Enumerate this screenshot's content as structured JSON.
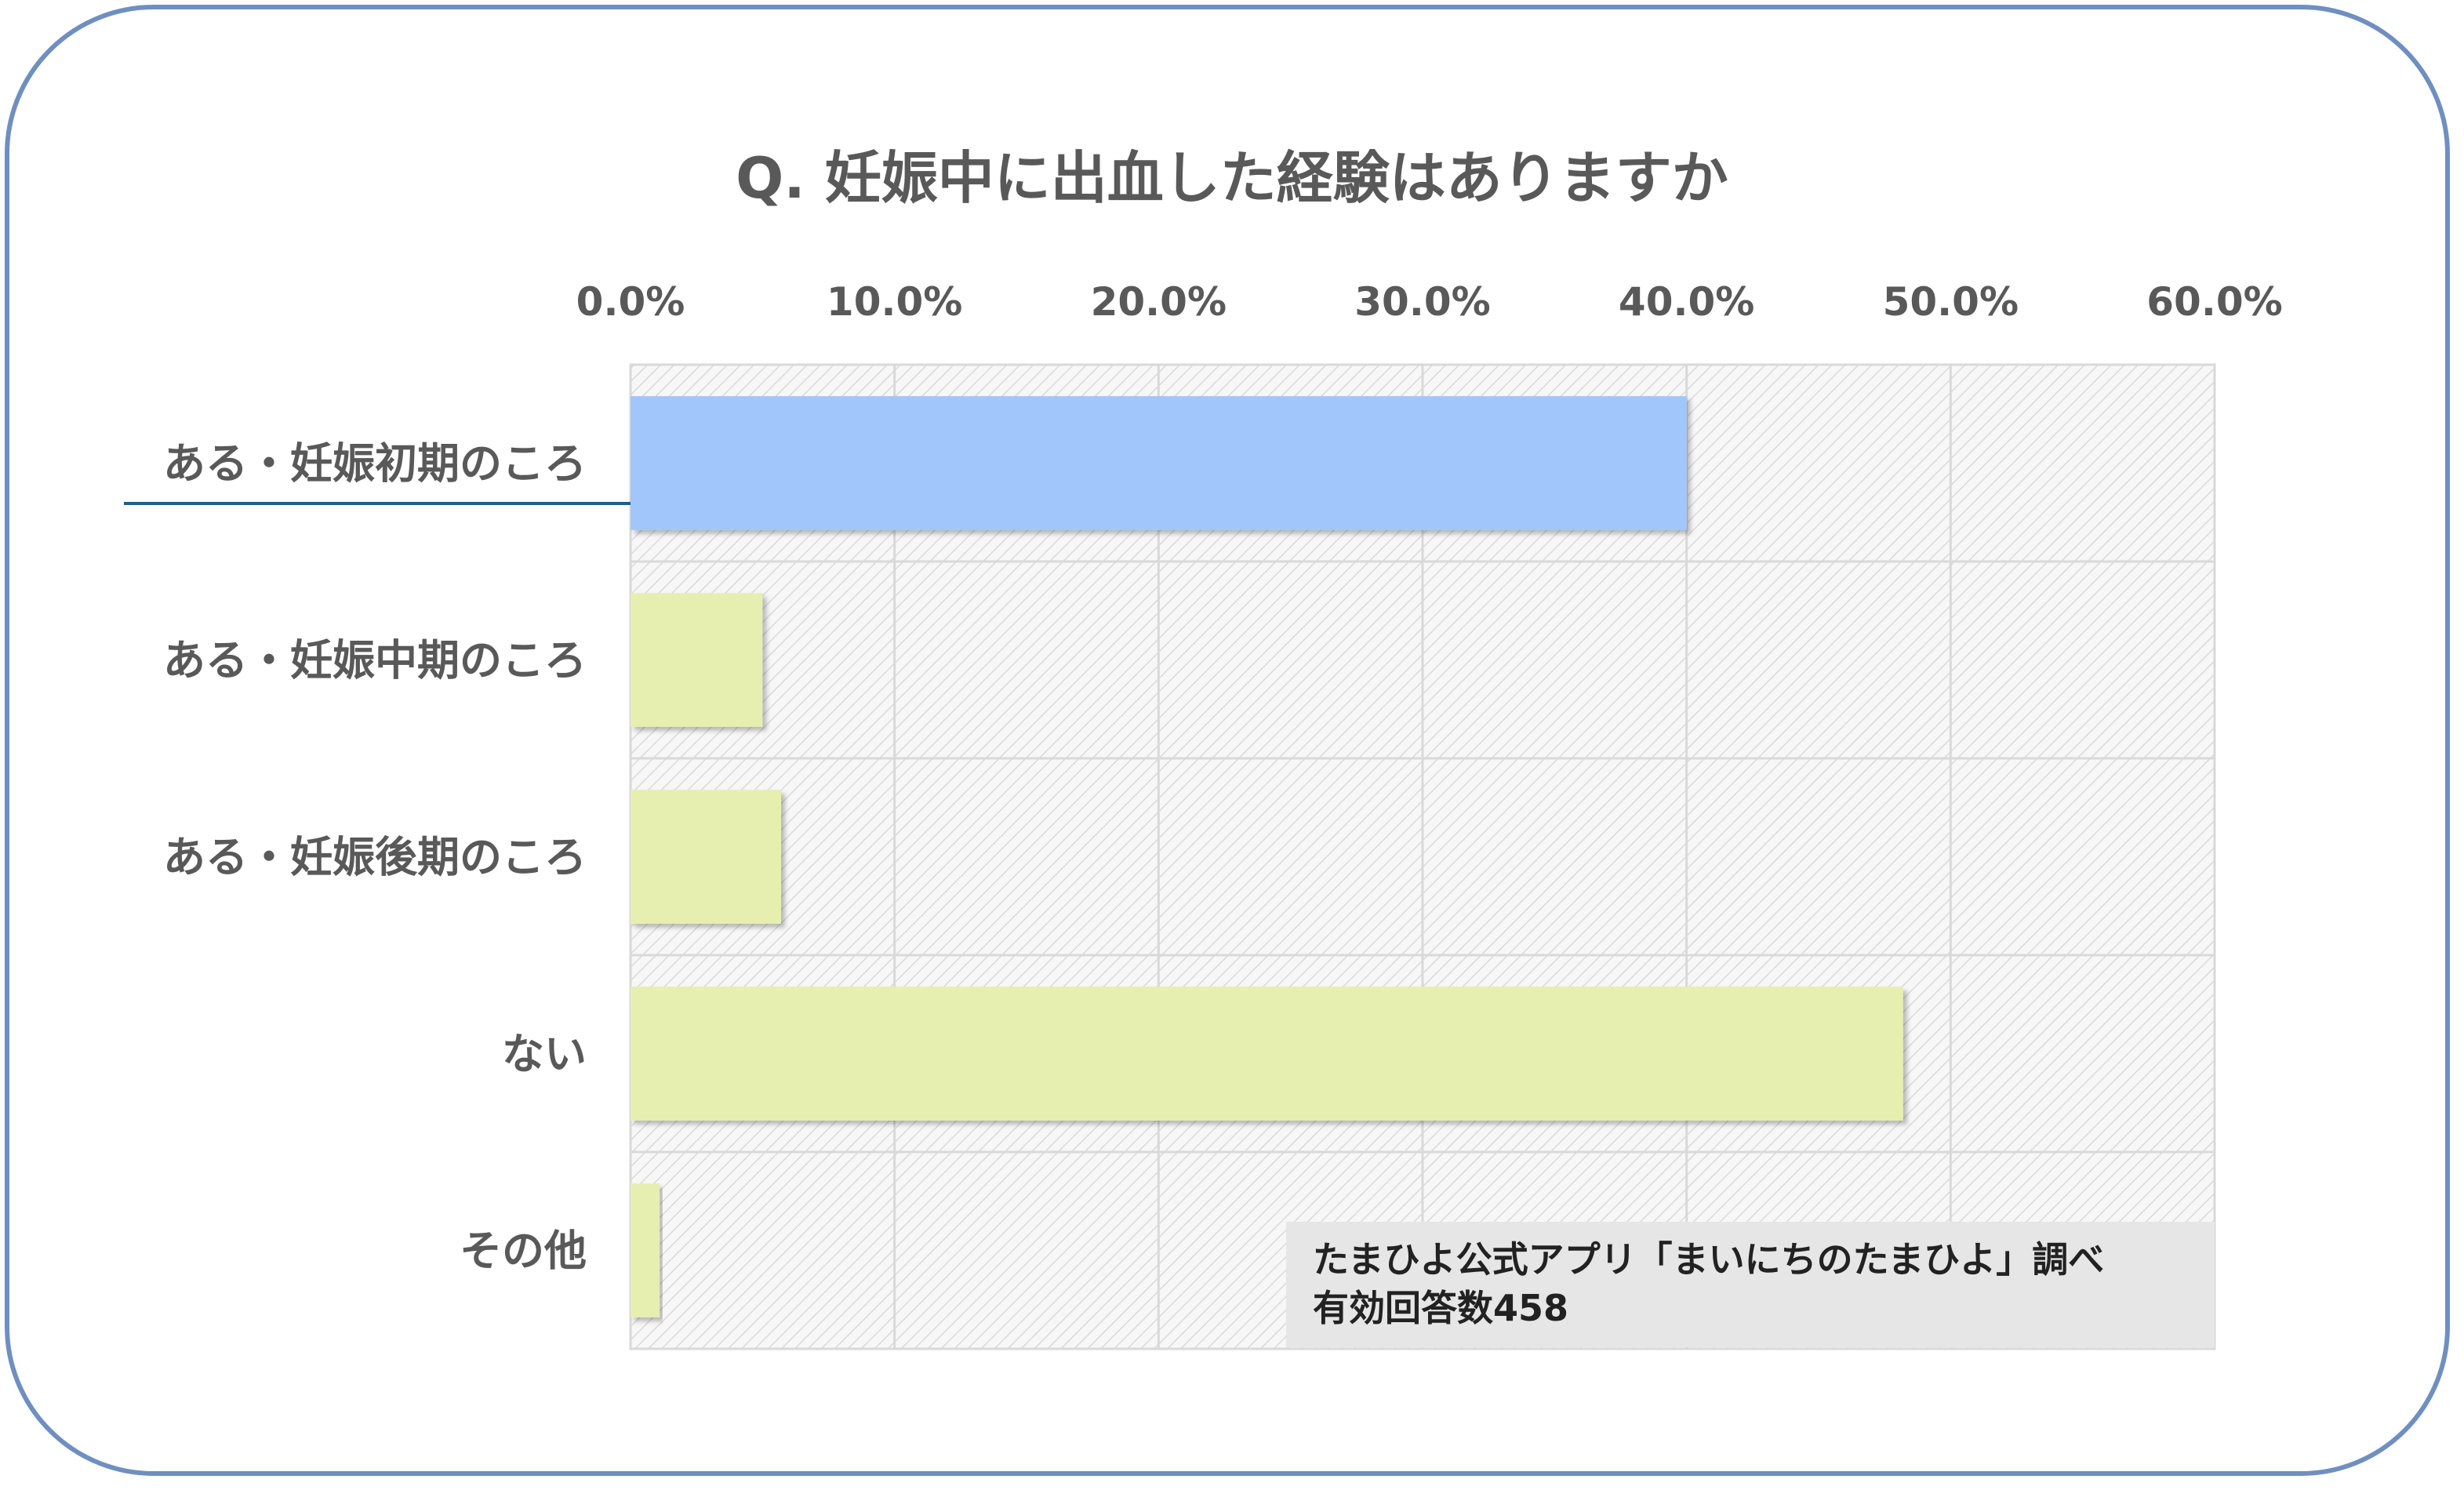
{
  "chart_data": {
    "type": "bar",
    "orientation": "horizontal",
    "title": "Q. 妊娠中に出血した経験はありますか",
    "categories": [
      "ある・妊娠初期のころ",
      "ある・妊娠中期のころ",
      "ある・妊娠後期のころ",
      "ない",
      "その他"
    ],
    "values": [
      40.0,
      5.0,
      5.7,
      48.2,
      1.1
    ],
    "xlim": [
      0,
      60
    ],
    "xticks": [
      "0.0%",
      "10.0%",
      "20.0%",
      "30.0%",
      "40.0%",
      "50.0%",
      "60.0%"
    ],
    "axis_position": "top",
    "grid": true,
    "highlight_index": 0,
    "colors": {
      "highlight": "#a1c6fb",
      "default": "#e7efb0",
      "frame": "#6f8fc0",
      "underline": "#1f5f8b",
      "note_bg": "#e6e6e6"
    },
    "note": {
      "line1": "たまひよ公式アプリ「まいにちのたまひよ」調べ",
      "line2": "有効回答数458"
    }
  }
}
